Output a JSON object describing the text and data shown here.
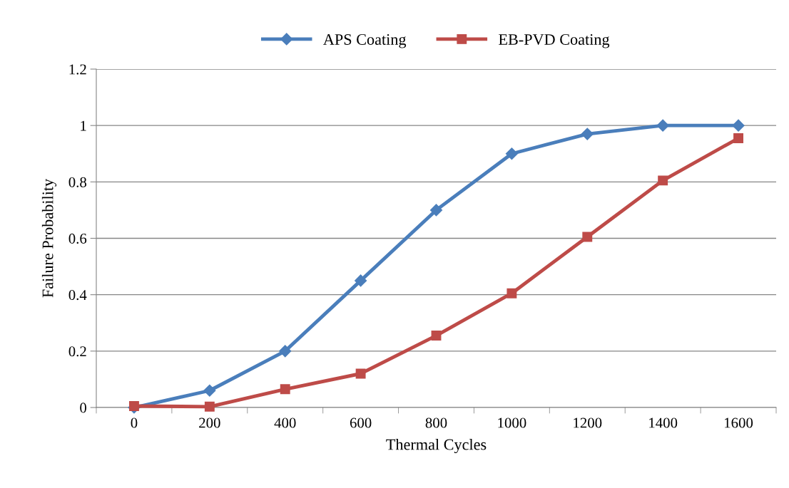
{
  "chart_data": {
    "type": "line",
    "xlabel": "Thermal Cycles",
    "ylabel": "Failure Probability",
    "categories": [
      "0",
      "200",
      "400",
      "600",
      "800",
      "1000",
      "1200",
      "1400",
      "1600"
    ],
    "series": [
      {
        "name": "APS Coating",
        "color": "#4a7ebb",
        "marker": "diamond",
        "values": [
          0,
          0.06,
          0.2,
          0.45,
          0.7,
          0.9,
          0.97,
          1.0,
          1.0
        ]
      },
      {
        "name": "EB-PVD Coating",
        "color": "#be4b48",
        "marker": "square",
        "values": [
          0.005,
          0.003,
          0.065,
          0.12,
          0.255,
          0.405,
          0.605,
          0.805,
          0.955
        ]
      }
    ],
    "ylim": [
      0,
      1.2
    ],
    "yticks": [
      0,
      0.2,
      0.4,
      0.6,
      0.8,
      1,
      1.2
    ],
    "grid": "y",
    "legend": "top",
    "line_style": "solid"
  }
}
